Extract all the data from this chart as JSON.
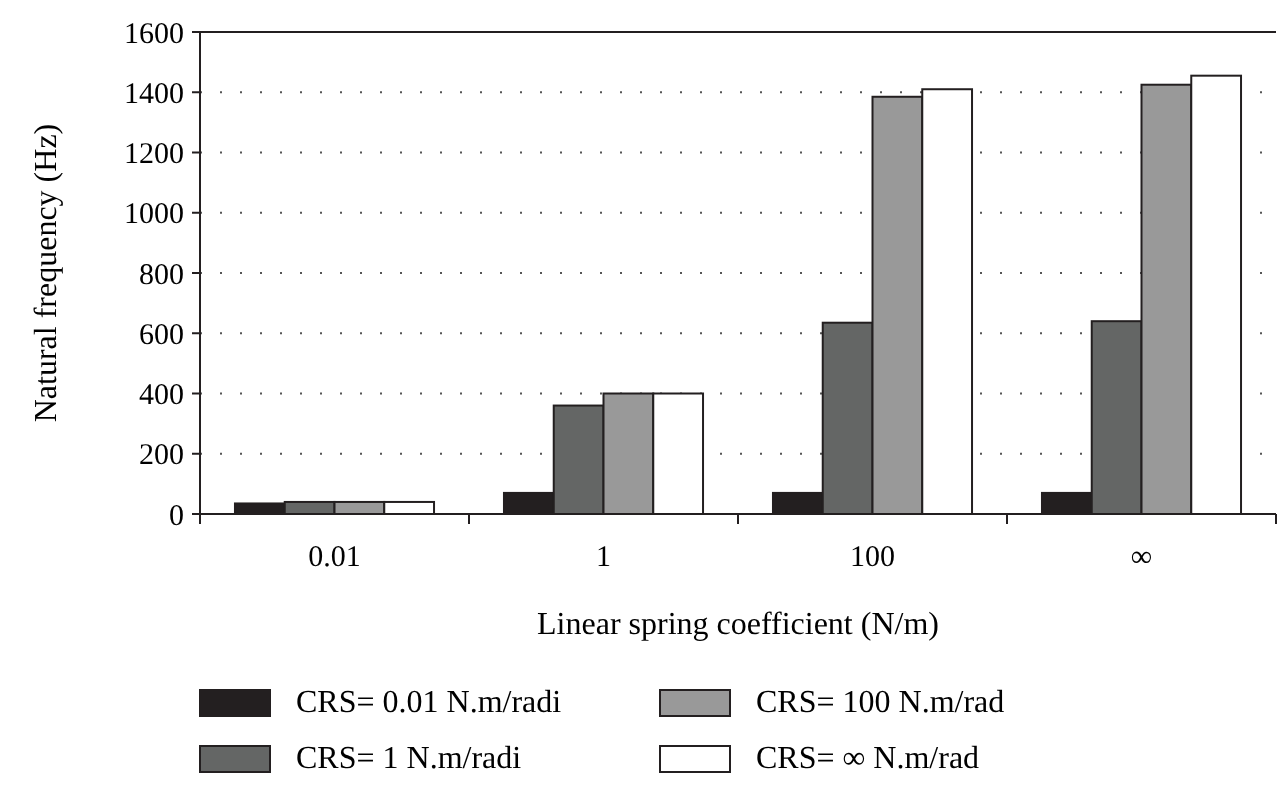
{
  "chart_data": {
    "type": "bar",
    "xlabel": "Linear spring coefficient (N/m)",
    "ylabel": "Natural frequency (Hz)",
    "categories": [
      "0.01",
      "1",
      "100",
      "∞"
    ],
    "series": [
      {
        "name": "CRS= 0.01 N.m/radi",
        "color": "#231f20",
        "values": [
          35,
          70,
          70,
          70
        ]
      },
      {
        "name": "CRS= 1 N.m/radi",
        "color": "#646665",
        "values": [
          40,
          360,
          635,
          640
        ]
      },
      {
        "name": "CRS= 100 N.m/rad",
        "color": "#999999",
        "values": [
          40,
          400,
          1385,
          1425
        ]
      },
      {
        "name": "CRS= ∞ N.m/rad",
        "color": "#ffffff",
        "values": [
          40,
          400,
          1410,
          1455
        ]
      }
    ],
    "ylim": [
      0,
      1600
    ],
    "yticks": [
      0,
      200,
      400,
      600,
      800,
      1000,
      1200,
      1400,
      1600
    ],
    "grid": "y",
    "legend": "bottom"
  }
}
